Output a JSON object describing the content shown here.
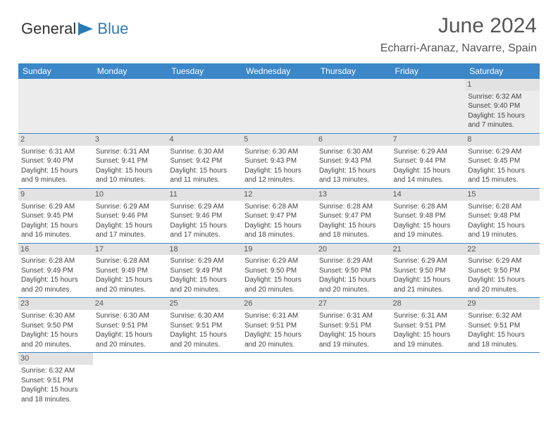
{
  "brand": {
    "part1": "General",
    "part2": "Blue",
    "color1": "#333333",
    "color2": "#2a7ab8"
  },
  "title": "June 2024",
  "location": "Echarri-Aranaz, Navarre, Spain",
  "header_bg": "#3b87c8",
  "daynum_bg": "#e2e2e2",
  "columns": [
    "Sunday",
    "Monday",
    "Tuesday",
    "Wednesday",
    "Thursday",
    "Friday",
    "Saturday"
  ],
  "weeks": [
    [
      {
        "day": "",
        "lines": [
          "",
          "",
          "",
          ""
        ]
      },
      {
        "day": "",
        "lines": [
          "",
          "",
          "",
          ""
        ]
      },
      {
        "day": "",
        "lines": [
          "",
          "",
          "",
          ""
        ]
      },
      {
        "day": "",
        "lines": [
          "",
          "",
          "",
          ""
        ]
      },
      {
        "day": "",
        "lines": [
          "",
          "",
          "",
          ""
        ]
      },
      {
        "day": "",
        "lines": [
          "",
          "",
          "",
          ""
        ]
      },
      {
        "day": "1",
        "lines": [
          "Sunrise: 6:32 AM",
          "Sunset: 9:40 PM",
          "Daylight: 15 hours",
          "and 7 minutes."
        ]
      }
    ],
    [
      {
        "day": "2",
        "lines": [
          "Sunrise: 6:31 AM",
          "Sunset: 9:40 PM",
          "Daylight: 15 hours",
          "and 9 minutes."
        ]
      },
      {
        "day": "3",
        "lines": [
          "Sunrise: 6:31 AM",
          "Sunset: 9:41 PM",
          "Daylight: 15 hours",
          "and 10 minutes."
        ]
      },
      {
        "day": "4",
        "lines": [
          "Sunrise: 6:30 AM",
          "Sunset: 9:42 PM",
          "Daylight: 15 hours",
          "and 11 minutes."
        ]
      },
      {
        "day": "5",
        "lines": [
          "Sunrise: 6:30 AM",
          "Sunset: 9:43 PM",
          "Daylight: 15 hours",
          "and 12 minutes."
        ]
      },
      {
        "day": "6",
        "lines": [
          "Sunrise: 6:30 AM",
          "Sunset: 9:43 PM",
          "Daylight: 15 hours",
          "and 13 minutes."
        ]
      },
      {
        "day": "7",
        "lines": [
          "Sunrise: 6:29 AM",
          "Sunset: 9:44 PM",
          "Daylight: 15 hours",
          "and 14 minutes."
        ]
      },
      {
        "day": "8",
        "lines": [
          "Sunrise: 6:29 AM",
          "Sunset: 9:45 PM",
          "Daylight: 15 hours",
          "and 15 minutes."
        ]
      }
    ],
    [
      {
        "day": "9",
        "lines": [
          "Sunrise: 6:29 AM",
          "Sunset: 9:45 PM",
          "Daylight: 15 hours",
          "and 16 minutes."
        ]
      },
      {
        "day": "10",
        "lines": [
          "Sunrise: 6:29 AM",
          "Sunset: 9:46 PM",
          "Daylight: 15 hours",
          "and 17 minutes."
        ]
      },
      {
        "day": "11",
        "lines": [
          "Sunrise: 6:29 AM",
          "Sunset: 9:46 PM",
          "Daylight: 15 hours",
          "and 17 minutes."
        ]
      },
      {
        "day": "12",
        "lines": [
          "Sunrise: 6:28 AM",
          "Sunset: 9:47 PM",
          "Daylight: 15 hours",
          "and 18 minutes."
        ]
      },
      {
        "day": "13",
        "lines": [
          "Sunrise: 6:28 AM",
          "Sunset: 9:47 PM",
          "Daylight: 15 hours",
          "and 18 minutes."
        ]
      },
      {
        "day": "14",
        "lines": [
          "Sunrise: 6:28 AM",
          "Sunset: 9:48 PM",
          "Daylight: 15 hours",
          "and 19 minutes."
        ]
      },
      {
        "day": "15",
        "lines": [
          "Sunrise: 6:28 AM",
          "Sunset: 9:48 PM",
          "Daylight: 15 hours",
          "and 19 minutes."
        ]
      }
    ],
    [
      {
        "day": "16",
        "lines": [
          "Sunrise: 6:28 AM",
          "Sunset: 9:49 PM",
          "Daylight: 15 hours",
          "and 20 minutes."
        ]
      },
      {
        "day": "17",
        "lines": [
          "Sunrise: 6:28 AM",
          "Sunset: 9:49 PM",
          "Daylight: 15 hours",
          "and 20 minutes."
        ]
      },
      {
        "day": "18",
        "lines": [
          "Sunrise: 6:29 AM",
          "Sunset: 9:49 PM",
          "Daylight: 15 hours",
          "and 20 minutes."
        ]
      },
      {
        "day": "19",
        "lines": [
          "Sunrise: 6:29 AM",
          "Sunset: 9:50 PM",
          "Daylight: 15 hours",
          "and 20 minutes."
        ]
      },
      {
        "day": "20",
        "lines": [
          "Sunrise: 6:29 AM",
          "Sunset: 9:50 PM",
          "Daylight: 15 hours",
          "and 20 minutes."
        ]
      },
      {
        "day": "21",
        "lines": [
          "Sunrise: 6:29 AM",
          "Sunset: 9:50 PM",
          "Daylight: 15 hours",
          "and 21 minutes."
        ]
      },
      {
        "day": "22",
        "lines": [
          "Sunrise: 6:29 AM",
          "Sunset: 9:50 PM",
          "Daylight: 15 hours",
          "and 20 minutes."
        ]
      }
    ],
    [
      {
        "day": "23",
        "lines": [
          "Sunrise: 6:30 AM",
          "Sunset: 9:50 PM",
          "Daylight: 15 hours",
          "and 20 minutes."
        ]
      },
      {
        "day": "24",
        "lines": [
          "Sunrise: 6:30 AM",
          "Sunset: 9:51 PM",
          "Daylight: 15 hours",
          "and 20 minutes."
        ]
      },
      {
        "day": "25",
        "lines": [
          "Sunrise: 6:30 AM",
          "Sunset: 9:51 PM",
          "Daylight: 15 hours",
          "and 20 minutes."
        ]
      },
      {
        "day": "26",
        "lines": [
          "Sunrise: 6:31 AM",
          "Sunset: 9:51 PM",
          "Daylight: 15 hours",
          "and 20 minutes."
        ]
      },
      {
        "day": "27",
        "lines": [
          "Sunrise: 6:31 AM",
          "Sunset: 9:51 PM",
          "Daylight: 15 hours",
          "and 19 minutes."
        ]
      },
      {
        "day": "28",
        "lines": [
          "Sunrise: 6:31 AM",
          "Sunset: 9:51 PM",
          "Daylight: 15 hours",
          "and 19 minutes."
        ]
      },
      {
        "day": "29",
        "lines": [
          "Sunrise: 6:32 AM",
          "Sunset: 9:51 PM",
          "Daylight: 15 hours",
          "and 18 minutes."
        ]
      }
    ],
    [
      {
        "day": "30",
        "lines": [
          "Sunrise: 6:32 AM",
          "Sunset: 9:51 PM",
          "Daylight: 15 hours",
          "and 18 minutes."
        ]
      },
      {
        "day": "",
        "lines": [
          "",
          "",
          "",
          ""
        ]
      },
      {
        "day": "",
        "lines": [
          "",
          "",
          "",
          ""
        ]
      },
      {
        "day": "",
        "lines": [
          "",
          "",
          "",
          ""
        ]
      },
      {
        "day": "",
        "lines": [
          "",
          "",
          "",
          ""
        ]
      },
      {
        "day": "",
        "lines": [
          "",
          "",
          "",
          ""
        ]
      },
      {
        "day": "",
        "lines": [
          "",
          "",
          "",
          ""
        ]
      }
    ]
  ]
}
